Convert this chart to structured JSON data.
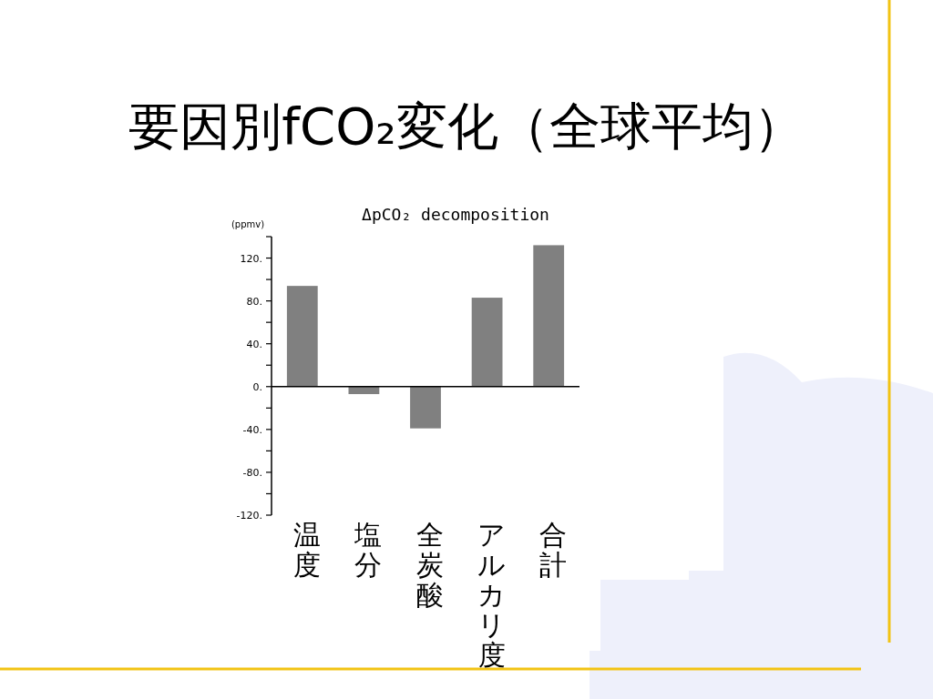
{
  "chart_data": {
    "type": "bar",
    "title": "要因別fCO₂変化（全球平均）",
    "subtitle": "ΔpCO₂ decomposition",
    "ylabel": "(ppmv)",
    "categories": [
      "温度",
      "塩分",
      "全炭酸",
      "アルカリ度",
      "合計"
    ],
    "values": [
      94,
      -7,
      -39,
      83,
      132
    ],
    "color": "#808080",
    "ylim": [
      -120,
      140
    ],
    "yticks": [
      {
        "value": -120,
        "label": "-120."
      },
      {
        "value": -100,
        "label": null
      },
      {
        "value": -80,
        "label": "-80."
      },
      {
        "value": -60,
        "label": null
      },
      {
        "value": -40,
        "label": "-40."
      },
      {
        "value": -20,
        "label": null
      },
      {
        "value": 0,
        "label": "0."
      },
      {
        "value": 20,
        "label": null
      },
      {
        "value": 40,
        "label": "40."
      },
      {
        "value": 60,
        "label": null
      },
      {
        "value": 80,
        "label": "80."
      },
      {
        "value": 100,
        "label": null
      },
      {
        "value": 120,
        "label": "120."
      },
      {
        "value": 140,
        "label": null
      }
    ]
  }
}
